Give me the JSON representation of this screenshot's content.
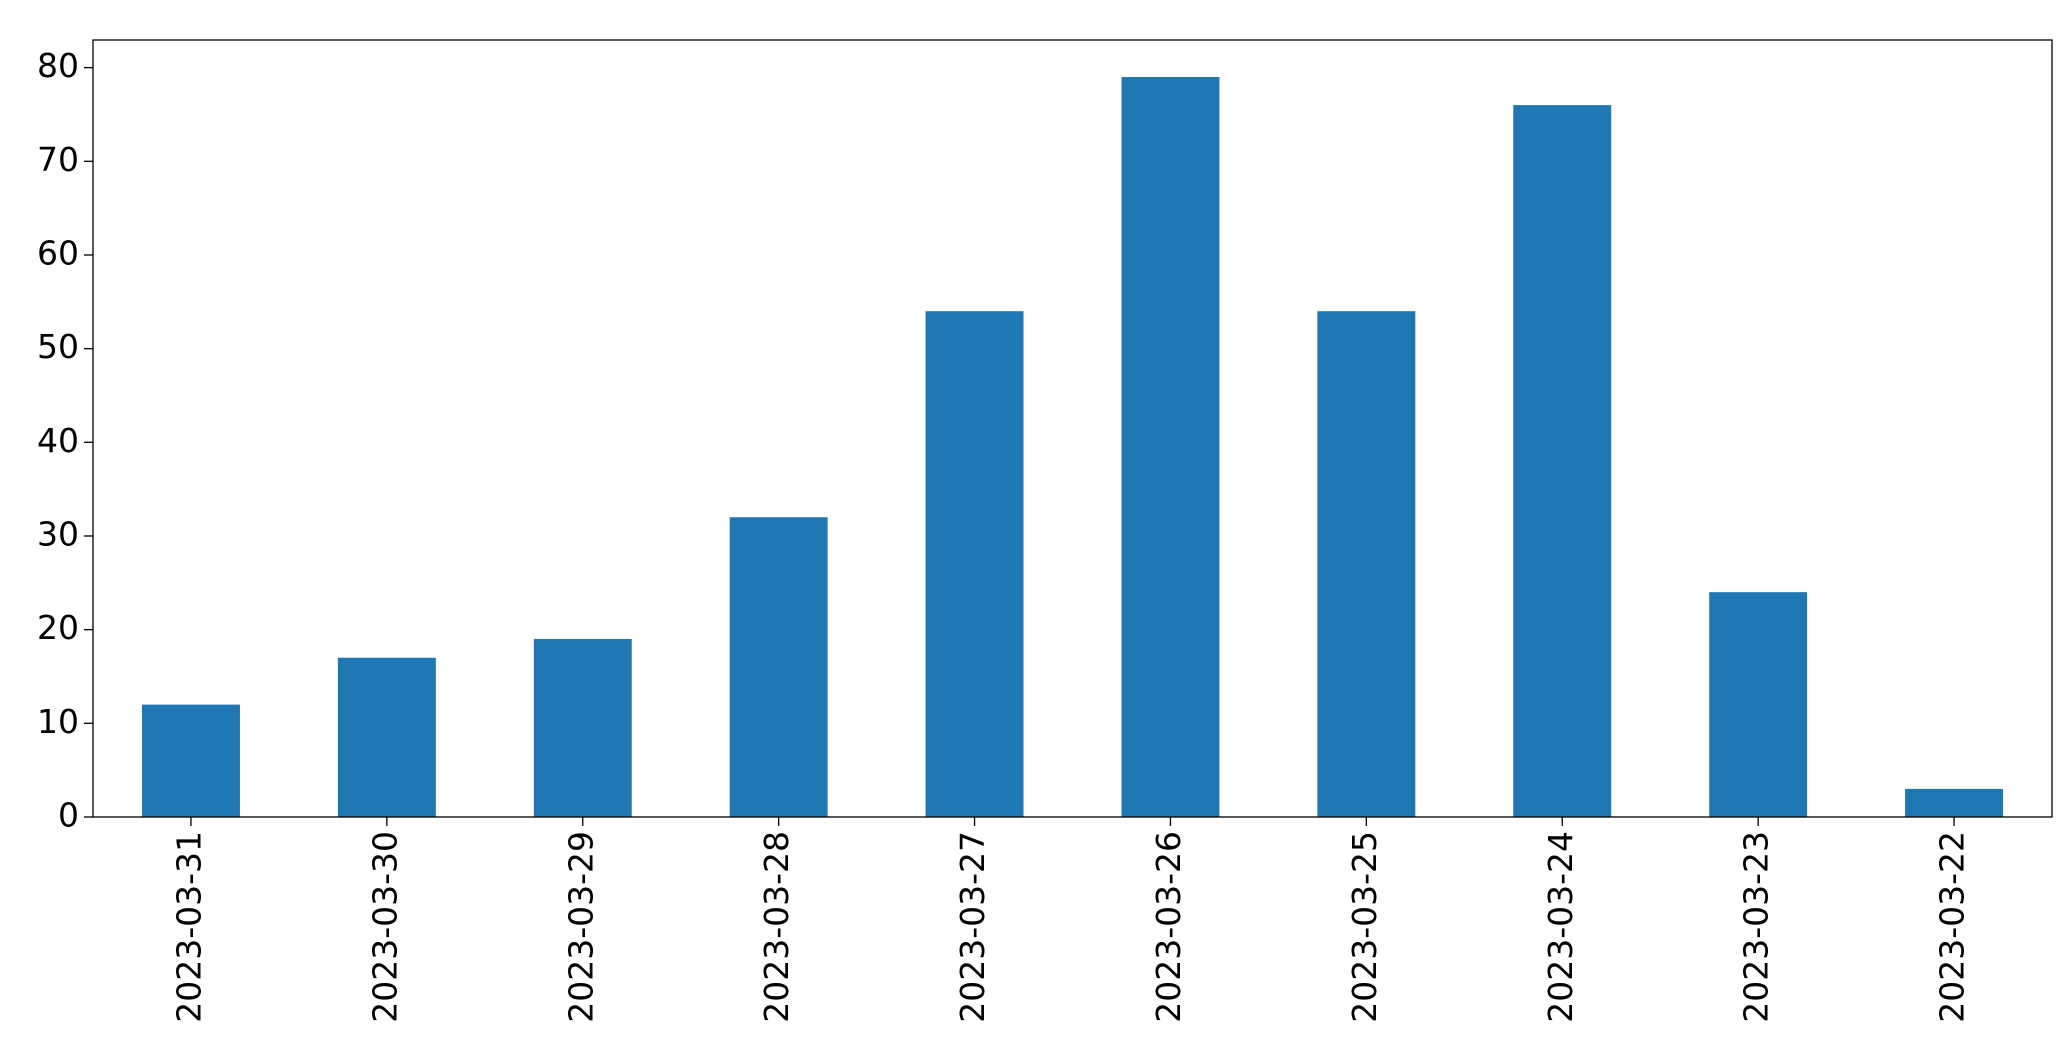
{
  "chart_data": {
    "type": "bar",
    "categories": [
      "2023-03-31",
      "2023-03-30",
      "2023-03-29",
      "2023-03-28",
      "2023-03-27",
      "2023-03-26",
      "2023-03-25",
      "2023-03-24",
      "2023-03-23",
      "2023-03-22"
    ],
    "values": [
      12,
      17,
      19,
      32,
      54,
      79,
      54,
      76,
      24,
      3
    ],
    "color": "#1f77b4",
    "ylim": [
      0,
      82.95
    ],
    "yticks": [
      0,
      10,
      20,
      30,
      40,
      50,
      60,
      70,
      80
    ],
    "grid": false
  }
}
